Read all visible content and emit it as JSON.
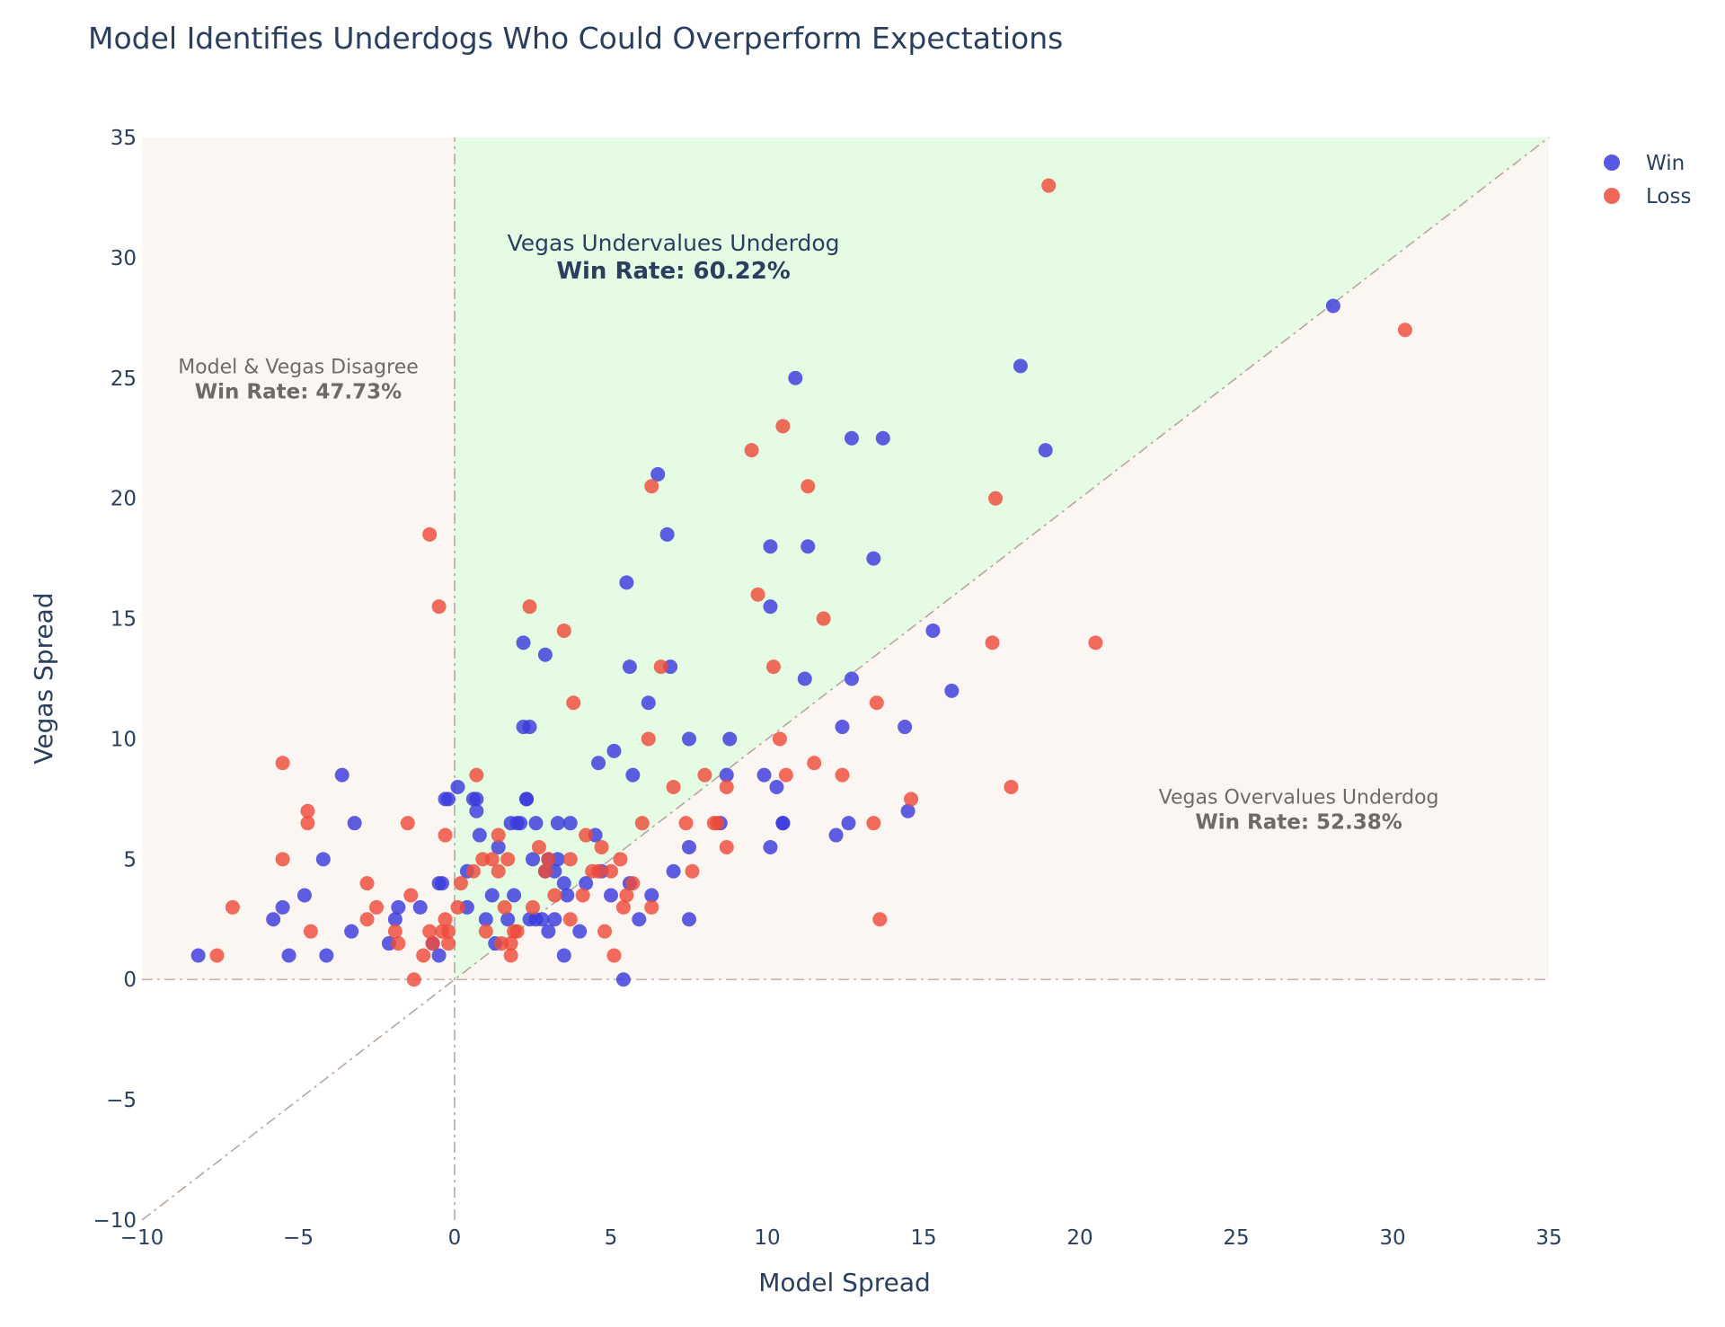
{
  "chart_data": {
    "type": "scatter",
    "title": "Model Identifies Underdogs Who Could Overperform Expectations",
    "xlabel": "Model Spread",
    "ylabel": "Vegas Spread",
    "xlim": [
      -10,
      35
    ],
    "ylim": [
      -10,
      35
    ],
    "xticks": [
      -10,
      -5,
      0,
      5,
      10,
      15,
      20,
      25,
      30,
      35
    ],
    "yticks": [
      -10,
      -5,
      0,
      5,
      10,
      15,
      20,
      25,
      30,
      35
    ],
    "tick_labels": [
      "−10",
      "−5",
      "0",
      "5",
      "10",
      "15",
      "20",
      "25",
      "30",
      "35"
    ],
    "legend_position": "top-right",
    "regions": [
      {
        "name": "Vegas Undervalues Underdog",
        "color": "#e5fbe3"
      },
      {
        "name": "Model & Vegas Disagree",
        "color": "#fcf6f2"
      },
      {
        "name": "Vegas Overvalues Underdog",
        "color": "#fcf6f2"
      }
    ],
    "annotations": [
      {
        "label": "Vegas Undervalues Underdog",
        "rate": "Win Rate: 60.22%",
        "x": 7,
        "y": 30.3,
        "size": 25,
        "style": "main"
      },
      {
        "label": "Model & Vegas Disagree",
        "rate": "Win Rate: 47.73%",
        "x": -5,
        "y": 25.2,
        "size": 22,
        "style": "dim"
      },
      {
        "label": "Vegas Overvalues Underdog",
        "rate": "Win Rate: 52.38%",
        "x": 27,
        "y": 7.3,
        "size": 22,
        "style": "dim"
      }
    ],
    "series": [
      {
        "name": "Win",
        "color": "#3b3bdd",
        "points": [
          [
            -8.2,
            1
          ],
          [
            -5.8,
            2.5
          ],
          [
            -5.5,
            3
          ],
          [
            -5.3,
            1
          ],
          [
            -4.8,
            3.5
          ],
          [
            -4.2,
            5
          ],
          [
            -4.1,
            1
          ],
          [
            -3.6,
            8.5
          ],
          [
            -3.3,
            2
          ],
          [
            -3.2,
            6.5
          ],
          [
            -2.1,
            1.5
          ],
          [
            -1.9,
            2.5
          ],
          [
            -1.8,
            3
          ],
          [
            -1.1,
            3
          ],
          [
            -0.7,
            1.5
          ],
          [
            -0.5,
            1
          ],
          [
            -0.5,
            4
          ],
          [
            -0.4,
            4
          ],
          [
            -0.3,
            7.5
          ],
          [
            -0.2,
            7.5
          ],
          [
            0.1,
            8
          ],
          [
            0.4,
            4.5
          ],
          [
            0.4,
            3
          ],
          [
            0.6,
            7.5
          ],
          [
            0.7,
            7.5
          ],
          [
            0.7,
            7
          ],
          [
            0.8,
            6
          ],
          [
            1.0,
            2.5
          ],
          [
            1.2,
            3.5
          ],
          [
            1.3,
            1.5
          ],
          [
            1.4,
            5.5
          ],
          [
            1.7,
            2.5
          ],
          [
            1.8,
            6.5
          ],
          [
            1.9,
            3.5
          ],
          [
            2.0,
            6.5
          ],
          [
            2.1,
            6.5
          ],
          [
            2.2,
            14
          ],
          [
            2.2,
            10.5
          ],
          [
            2.3,
            7.5
          ],
          [
            2.3,
            7.5
          ],
          [
            2.4,
            2.5
          ],
          [
            2.4,
            10.5
          ],
          [
            2.5,
            5
          ],
          [
            2.6,
            2.5
          ],
          [
            2.6,
            6.5
          ],
          [
            2.8,
            2.5
          ],
          [
            2.9,
            13.5
          ],
          [
            2.9,
            4.5
          ],
          [
            3.0,
            2
          ],
          [
            3.0,
            5
          ],
          [
            3.2,
            2.5
          ],
          [
            3.2,
            4.5
          ],
          [
            3.3,
            5
          ],
          [
            3.3,
            6.5
          ],
          [
            3.5,
            1
          ],
          [
            3.5,
            4
          ],
          [
            3.6,
            3.5
          ],
          [
            3.7,
            6.5
          ],
          [
            4.0,
            2
          ],
          [
            4.2,
            4
          ],
          [
            4.5,
            6
          ],
          [
            4.6,
            9
          ],
          [
            4.7,
            4.5
          ],
          [
            5.0,
            3.5
          ],
          [
            5.1,
            9.5
          ],
          [
            5.4,
            0
          ],
          [
            5.5,
            16.5
          ],
          [
            5.6,
            13
          ],
          [
            5.6,
            4
          ],
          [
            5.7,
            8.5
          ],
          [
            5.9,
            2.5
          ],
          [
            6.2,
            11.5
          ],
          [
            6.3,
            3.5
          ],
          [
            6.5,
            21
          ],
          [
            6.8,
            18.5
          ],
          [
            6.9,
            13
          ],
          [
            7.0,
            4.5
          ],
          [
            7.5,
            5.5
          ],
          [
            7.5,
            2.5
          ],
          [
            7.5,
            10
          ],
          [
            8.5,
            6.5
          ],
          [
            8.7,
            8.5
          ],
          [
            8.8,
            10
          ],
          [
            9.9,
            8.5
          ],
          [
            10.1,
            5.5
          ],
          [
            10.1,
            18
          ],
          [
            10.1,
            15.5
          ],
          [
            10.3,
            8
          ],
          [
            10.5,
            6.5
          ],
          [
            10.5,
            6.5
          ],
          [
            10.9,
            25
          ],
          [
            11.2,
            12.5
          ],
          [
            11.3,
            18
          ],
          [
            12.2,
            6
          ],
          [
            12.4,
            10.5
          ],
          [
            12.6,
            6.5
          ],
          [
            12.7,
            12.5
          ],
          [
            12.7,
            22.5
          ],
          [
            13.4,
            17.5
          ],
          [
            13.7,
            22.5
          ],
          [
            14.4,
            10.5
          ],
          [
            14.5,
            7
          ],
          [
            15.3,
            14.5
          ],
          [
            15.9,
            12
          ],
          [
            18.1,
            25.5
          ],
          [
            18.9,
            22
          ],
          [
            28.1,
            28
          ]
        ]
      },
      {
        "name": "Loss",
        "color": "#ee4b3b",
        "points": [
          [
            -7.6,
            1
          ],
          [
            -7.1,
            3
          ],
          [
            -5.5,
            9
          ],
          [
            -5.5,
            5
          ],
          [
            -4.7,
            7
          ],
          [
            -4.7,
            6.5
          ],
          [
            -4.6,
            2
          ],
          [
            -2.8,
            2.5
          ],
          [
            -2.8,
            4
          ],
          [
            -2.5,
            3
          ],
          [
            -1.9,
            2
          ],
          [
            -1.8,
            1.5
          ],
          [
            -1.5,
            6.5
          ],
          [
            -1.4,
            3.5
          ],
          [
            -1.3,
            0
          ],
          [
            -1.0,
            1
          ],
          [
            -0.8,
            18.5
          ],
          [
            -0.8,
            2
          ],
          [
            -0.7,
            1.5
          ],
          [
            -0.5,
            15.5
          ],
          [
            -0.4,
            2
          ],
          [
            -0.3,
            6
          ],
          [
            -0.3,
            2.5
          ],
          [
            -0.2,
            2
          ],
          [
            -0.2,
            1.5
          ],
          [
            0.1,
            3
          ],
          [
            0.2,
            4
          ],
          [
            0.6,
            4.5
          ],
          [
            0.7,
            8.5
          ],
          [
            0.9,
            5
          ],
          [
            1.0,
            2
          ],
          [
            1.2,
            5
          ],
          [
            1.4,
            4.5
          ],
          [
            1.4,
            6
          ],
          [
            1.5,
            1.5
          ],
          [
            1.6,
            3
          ],
          [
            1.7,
            5
          ],
          [
            1.8,
            1
          ],
          [
            1.8,
            1.5
          ],
          [
            1.9,
            2
          ],
          [
            2.0,
            2
          ],
          [
            2.4,
            15.5
          ],
          [
            2.5,
            3
          ],
          [
            2.7,
            5.5
          ],
          [
            2.9,
            4.5
          ],
          [
            3.0,
            5
          ],
          [
            3.2,
            3.5
          ],
          [
            3.5,
            14.5
          ],
          [
            3.7,
            5
          ],
          [
            3.7,
            2.5
          ],
          [
            3.8,
            11.5
          ],
          [
            4.1,
            3.5
          ],
          [
            4.2,
            6
          ],
          [
            4.4,
            4.5
          ],
          [
            4.6,
            4.5
          ],
          [
            4.7,
            5.5
          ],
          [
            4.8,
            2
          ],
          [
            5.0,
            4.5
          ],
          [
            5.1,
            1
          ],
          [
            5.3,
            5
          ],
          [
            5.4,
            3
          ],
          [
            5.5,
            3.5
          ],
          [
            5.7,
            4
          ],
          [
            6.0,
            6.5
          ],
          [
            6.2,
            10
          ],
          [
            6.3,
            20.5
          ],
          [
            6.3,
            3
          ],
          [
            6.6,
            13
          ],
          [
            7.0,
            8
          ],
          [
            7.4,
            6.5
          ],
          [
            7.6,
            4.5
          ],
          [
            8.0,
            8.5
          ],
          [
            8.3,
            6.5
          ],
          [
            8.4,
            6.5
          ],
          [
            8.7,
            5.5
          ],
          [
            8.7,
            8
          ],
          [
            9.5,
            22
          ],
          [
            9.7,
            16
          ],
          [
            10.2,
            13
          ],
          [
            10.4,
            10
          ],
          [
            10.5,
            23
          ],
          [
            10.6,
            8.5
          ],
          [
            11.3,
            20.5
          ],
          [
            11.5,
            9
          ],
          [
            11.8,
            15
          ],
          [
            12.4,
            8.5
          ],
          [
            13.4,
            6.5
          ],
          [
            13.5,
            11.5
          ],
          [
            13.6,
            2.5
          ],
          [
            14.6,
            7.5
          ],
          [
            17.2,
            14
          ],
          [
            17.3,
            20
          ],
          [
            17.8,
            8
          ],
          [
            19.0,
            33
          ],
          [
            20.5,
            14
          ],
          [
            30.4,
            27
          ]
        ]
      }
    ]
  }
}
